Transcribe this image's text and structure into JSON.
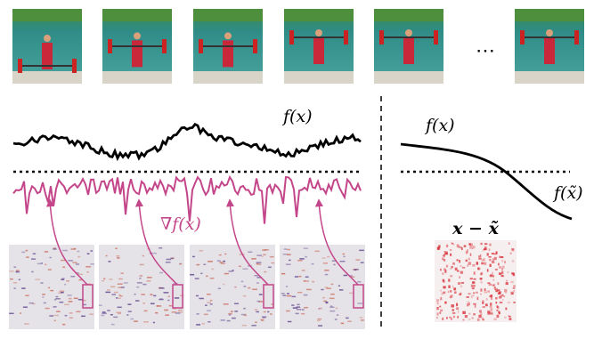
{
  "labels": {
    "f_x_left": "f(x)",
    "grad": "∇f(x)",
    "f_x_right": "f(x)",
    "f_xtilde": "f(x̃)",
    "diff": "x − x̃",
    "ellipsis": "⋯"
  }
}
